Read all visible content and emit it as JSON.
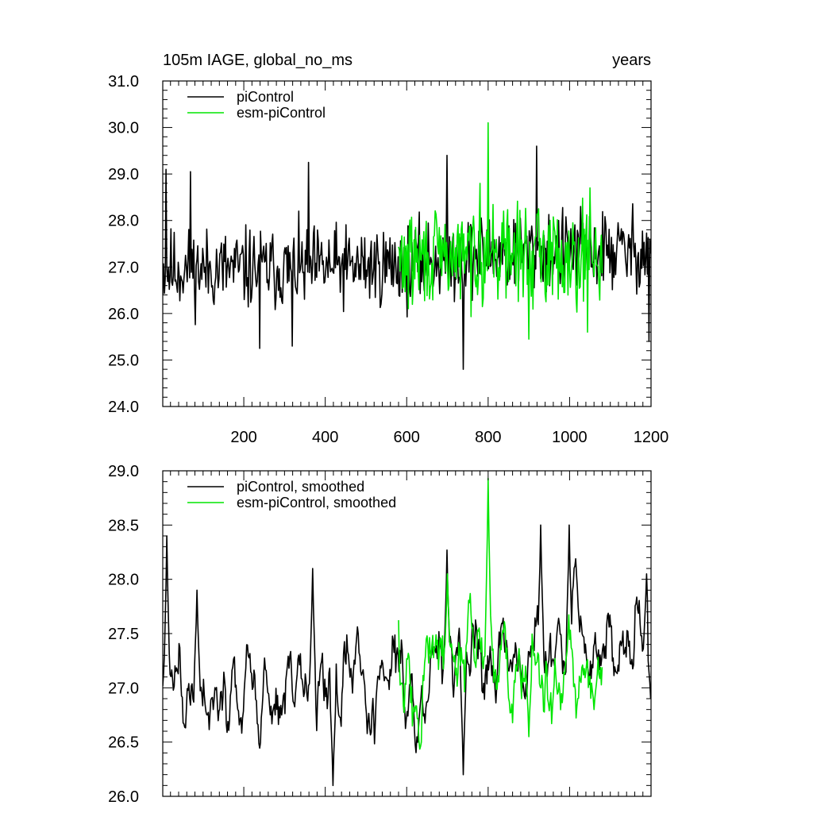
{
  "figure": {
    "title_left": "105m IAGE, global_no_ms",
    "title_right": "years"
  },
  "chart_data": [
    {
      "type": "line",
      "title": "105m IAGE, global_no_ms",
      "xlabel": "years",
      "ylabel": "",
      "xlim": [
        1,
        1200
      ],
      "ylim": [
        24.0,
        31.0
      ],
      "xticks": [
        200,
        400,
        600,
        800,
        1000,
        1200
      ],
      "xtick_labels": [
        "200",
        "400",
        "600",
        "800",
        "1000",
        "1200"
      ],
      "yticks": [
        24.0,
        25.0,
        26.0,
        27.0,
        28.0,
        29.0,
        30.0,
        31.0
      ],
      "ytick_labels": [
        "24.0",
        "25.0",
        "26.0",
        "27.0",
        "28.0",
        "29.0",
        "30.0",
        "31.0"
      ],
      "legend_position": "top-left",
      "series": [
        {
          "name": "piControl",
          "color": "#000000",
          "x_start": 1,
          "x_end": 1200,
          "mode": "raw",
          "mean": [
            [
              1,
              26.95
            ],
            [
              300,
              26.95
            ],
            [
              600,
              27.05
            ],
            [
              800,
              27.3
            ],
            [
              1200,
              27.35
            ]
          ],
          "noise_amp": 0.62,
          "spikes": [
            [
              10,
              29.1
            ],
            [
              70,
              29.05
            ],
            [
              360,
              29.25
            ],
            [
              700,
              29.4
            ],
            [
              740,
              24.8
            ],
            [
              920,
              29.6
            ],
            [
              1195,
              25.4
            ],
            [
              240,
              25.25
            ],
            [
              320,
              25.3
            ]
          ],
          "seed": 11
        },
        {
          "name": "esm-piControl",
          "color": "#00e600",
          "x_start": 580,
          "x_end": 1080,
          "mode": "raw",
          "mean": [
            [
              580,
              27.1
            ],
            [
              800,
              27.3
            ],
            [
              1080,
              27.25
            ]
          ],
          "noise_amp": 0.72,
          "spikes": [
            [
              800,
              30.1
            ],
            [
              780,
              28.8
            ],
            [
              900,
              25.45
            ],
            [
              1045,
              25.6
            ],
            [
              1050,
              28.7
            ]
          ],
          "seed": 29
        }
      ]
    },
    {
      "type": "line",
      "title": "",
      "xlabel": "",
      "ylabel": "",
      "xlim": [
        1,
        1200
      ],
      "ylim": [
        26.0,
        29.0
      ],
      "xticks": [
        200,
        400,
        600,
        800,
        1000,
        1200
      ],
      "xtick_labels": [],
      "yticks": [
        26.0,
        26.5,
        27.0,
        27.5,
        28.0,
        28.5,
        29.0
      ],
      "ytick_labels": [
        "26.0",
        "26.5",
        "27.0",
        "27.5",
        "28.0",
        "28.5",
        "29.0"
      ],
      "legend_position": "top-left",
      "series": [
        {
          "name": "piControl, smoothed",
          "color": "#000000",
          "x_start": 1,
          "x_end": 1200,
          "mode": "smooth",
          "mean": [
            [
              1,
              27.0
            ],
            [
              300,
              26.95
            ],
            [
              600,
              27.05
            ],
            [
              800,
              27.3
            ],
            [
              1200,
              27.35
            ]
          ],
          "noise_amp": 0.42,
          "spikes": [
            [
              12,
              28.4
            ],
            [
              85,
              27.9
            ],
            [
              370,
              28.1
            ],
            [
              420,
              26.1
            ],
            [
              700,
              28.27
            ],
            [
              740,
              26.2
            ],
            [
              930,
              28.5
            ],
            [
              1000,
              28.5
            ],
            [
              1190,
              28.05
            ],
            [
              1200,
              26.9
            ]
          ],
          "seed": 41
        },
        {
          "name": "esm-piControl, smoothed",
          "color": "#00e600",
          "x_start": 580,
          "x_end": 1080,
          "mode": "smooth",
          "mean": [
            [
              580,
              27.1
            ],
            [
              800,
              27.3
            ],
            [
              1080,
              27.1
            ]
          ],
          "noise_amp": 0.45,
          "spikes": [
            [
              800,
              28.93
            ],
            [
              700,
              28.05
            ],
            [
              900,
              26.55
            ],
            [
              1060,
              26.8
            ]
          ],
          "seed": 57
        }
      ]
    }
  ]
}
